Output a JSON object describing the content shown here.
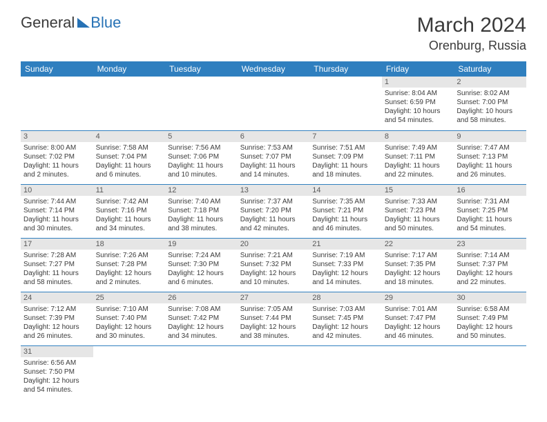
{
  "logo": {
    "part1": "General",
    "part2": "Blue"
  },
  "title": "March 2024",
  "location": "Orenburg, Russia",
  "dayNames": [
    "Sunday",
    "Monday",
    "Tuesday",
    "Wednesday",
    "Thursday",
    "Friday",
    "Saturday"
  ],
  "colors": {
    "header_bg": "#2f7fbf",
    "header_text": "#ffffff",
    "daynum_bg": "#e6e6e6",
    "daynum_text": "#595959",
    "body_text": "#3a3a3a",
    "row_border": "#2f7fbf",
    "logo_accent": "#2772b5"
  },
  "weeks": [
    [
      {
        "n": "",
        "sunrise": "",
        "sunset": "",
        "daylight": ""
      },
      {
        "n": "",
        "sunrise": "",
        "sunset": "",
        "daylight": ""
      },
      {
        "n": "",
        "sunrise": "",
        "sunset": "",
        "daylight": ""
      },
      {
        "n": "",
        "sunrise": "",
        "sunset": "",
        "daylight": ""
      },
      {
        "n": "",
        "sunrise": "",
        "sunset": "",
        "daylight": ""
      },
      {
        "n": "1",
        "sunrise": "Sunrise: 8:04 AM",
        "sunset": "Sunset: 6:59 PM",
        "daylight": "Daylight: 10 hours and 54 minutes."
      },
      {
        "n": "2",
        "sunrise": "Sunrise: 8:02 AM",
        "sunset": "Sunset: 7:00 PM",
        "daylight": "Daylight: 10 hours and 58 minutes."
      }
    ],
    [
      {
        "n": "3",
        "sunrise": "Sunrise: 8:00 AM",
        "sunset": "Sunset: 7:02 PM",
        "daylight": "Daylight: 11 hours and 2 minutes."
      },
      {
        "n": "4",
        "sunrise": "Sunrise: 7:58 AM",
        "sunset": "Sunset: 7:04 PM",
        "daylight": "Daylight: 11 hours and 6 minutes."
      },
      {
        "n": "5",
        "sunrise": "Sunrise: 7:56 AM",
        "sunset": "Sunset: 7:06 PM",
        "daylight": "Daylight: 11 hours and 10 minutes."
      },
      {
        "n": "6",
        "sunrise": "Sunrise: 7:53 AM",
        "sunset": "Sunset: 7:07 PM",
        "daylight": "Daylight: 11 hours and 14 minutes."
      },
      {
        "n": "7",
        "sunrise": "Sunrise: 7:51 AM",
        "sunset": "Sunset: 7:09 PM",
        "daylight": "Daylight: 11 hours and 18 minutes."
      },
      {
        "n": "8",
        "sunrise": "Sunrise: 7:49 AM",
        "sunset": "Sunset: 7:11 PM",
        "daylight": "Daylight: 11 hours and 22 minutes."
      },
      {
        "n": "9",
        "sunrise": "Sunrise: 7:47 AM",
        "sunset": "Sunset: 7:13 PM",
        "daylight": "Daylight: 11 hours and 26 minutes."
      }
    ],
    [
      {
        "n": "10",
        "sunrise": "Sunrise: 7:44 AM",
        "sunset": "Sunset: 7:14 PM",
        "daylight": "Daylight: 11 hours and 30 minutes."
      },
      {
        "n": "11",
        "sunrise": "Sunrise: 7:42 AM",
        "sunset": "Sunset: 7:16 PM",
        "daylight": "Daylight: 11 hours and 34 minutes."
      },
      {
        "n": "12",
        "sunrise": "Sunrise: 7:40 AM",
        "sunset": "Sunset: 7:18 PM",
        "daylight": "Daylight: 11 hours and 38 minutes."
      },
      {
        "n": "13",
        "sunrise": "Sunrise: 7:37 AM",
        "sunset": "Sunset: 7:20 PM",
        "daylight": "Daylight: 11 hours and 42 minutes."
      },
      {
        "n": "14",
        "sunrise": "Sunrise: 7:35 AM",
        "sunset": "Sunset: 7:21 PM",
        "daylight": "Daylight: 11 hours and 46 minutes."
      },
      {
        "n": "15",
        "sunrise": "Sunrise: 7:33 AM",
        "sunset": "Sunset: 7:23 PM",
        "daylight": "Daylight: 11 hours and 50 minutes."
      },
      {
        "n": "16",
        "sunrise": "Sunrise: 7:31 AM",
        "sunset": "Sunset: 7:25 PM",
        "daylight": "Daylight: 11 hours and 54 minutes."
      }
    ],
    [
      {
        "n": "17",
        "sunrise": "Sunrise: 7:28 AM",
        "sunset": "Sunset: 7:27 PM",
        "daylight": "Daylight: 11 hours and 58 minutes."
      },
      {
        "n": "18",
        "sunrise": "Sunrise: 7:26 AM",
        "sunset": "Sunset: 7:28 PM",
        "daylight": "Daylight: 12 hours and 2 minutes."
      },
      {
        "n": "19",
        "sunrise": "Sunrise: 7:24 AM",
        "sunset": "Sunset: 7:30 PM",
        "daylight": "Daylight: 12 hours and 6 minutes."
      },
      {
        "n": "20",
        "sunrise": "Sunrise: 7:21 AM",
        "sunset": "Sunset: 7:32 PM",
        "daylight": "Daylight: 12 hours and 10 minutes."
      },
      {
        "n": "21",
        "sunrise": "Sunrise: 7:19 AM",
        "sunset": "Sunset: 7:33 PM",
        "daylight": "Daylight: 12 hours and 14 minutes."
      },
      {
        "n": "22",
        "sunrise": "Sunrise: 7:17 AM",
        "sunset": "Sunset: 7:35 PM",
        "daylight": "Daylight: 12 hours and 18 minutes."
      },
      {
        "n": "23",
        "sunrise": "Sunrise: 7:14 AM",
        "sunset": "Sunset: 7:37 PM",
        "daylight": "Daylight: 12 hours and 22 minutes."
      }
    ],
    [
      {
        "n": "24",
        "sunrise": "Sunrise: 7:12 AM",
        "sunset": "Sunset: 7:39 PM",
        "daylight": "Daylight: 12 hours and 26 minutes."
      },
      {
        "n": "25",
        "sunrise": "Sunrise: 7:10 AM",
        "sunset": "Sunset: 7:40 PM",
        "daylight": "Daylight: 12 hours and 30 minutes."
      },
      {
        "n": "26",
        "sunrise": "Sunrise: 7:08 AM",
        "sunset": "Sunset: 7:42 PM",
        "daylight": "Daylight: 12 hours and 34 minutes."
      },
      {
        "n": "27",
        "sunrise": "Sunrise: 7:05 AM",
        "sunset": "Sunset: 7:44 PM",
        "daylight": "Daylight: 12 hours and 38 minutes."
      },
      {
        "n": "28",
        "sunrise": "Sunrise: 7:03 AM",
        "sunset": "Sunset: 7:45 PM",
        "daylight": "Daylight: 12 hours and 42 minutes."
      },
      {
        "n": "29",
        "sunrise": "Sunrise: 7:01 AM",
        "sunset": "Sunset: 7:47 PM",
        "daylight": "Daylight: 12 hours and 46 minutes."
      },
      {
        "n": "30",
        "sunrise": "Sunrise: 6:58 AM",
        "sunset": "Sunset: 7:49 PM",
        "daylight": "Daylight: 12 hours and 50 minutes."
      }
    ],
    [
      {
        "n": "31",
        "sunrise": "Sunrise: 6:56 AM",
        "sunset": "Sunset: 7:50 PM",
        "daylight": "Daylight: 12 hours and 54 minutes."
      },
      {
        "n": "",
        "sunrise": "",
        "sunset": "",
        "daylight": ""
      },
      {
        "n": "",
        "sunrise": "",
        "sunset": "",
        "daylight": ""
      },
      {
        "n": "",
        "sunrise": "",
        "sunset": "",
        "daylight": ""
      },
      {
        "n": "",
        "sunrise": "",
        "sunset": "",
        "daylight": ""
      },
      {
        "n": "",
        "sunrise": "",
        "sunset": "",
        "daylight": ""
      },
      {
        "n": "",
        "sunrise": "",
        "sunset": "",
        "daylight": ""
      }
    ]
  ]
}
